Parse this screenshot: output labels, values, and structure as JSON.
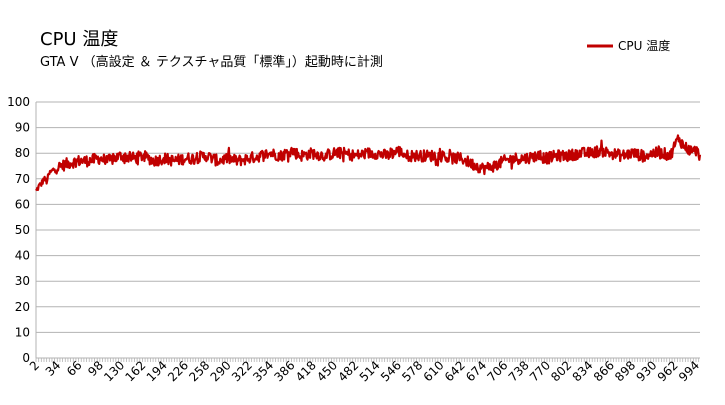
{
  "chart_data": {
    "type": "line",
    "title": "CPU 温度",
    "subtitle": "GTA V （高設定 ＆ テクスチャ品質「標準」）起動時に計測",
    "xlabel": "",
    "ylabel": "",
    "ylim": [
      0,
      100
    ],
    "yticks": [
      "0",
      "10",
      "20",
      "30",
      "40",
      "50",
      "60",
      "70",
      "80",
      "90",
      "100"
    ],
    "x_range": [
      2,
      1000
    ],
    "xticks": [
      "2",
      "34",
      "66",
      "98",
      "130",
      "162",
      "194",
      "226",
      "258",
      "290",
      "322",
      "354",
      "386",
      "418",
      "450",
      "482",
      "514",
      "546",
      "578",
      "610",
      "642",
      "674",
      "706",
      "738",
      "770",
      "802",
      "834",
      "866",
      "898",
      "930",
      "962",
      "994"
    ],
    "grid": "horizontal",
    "legend_position": "top-right",
    "series": [
      {
        "name": "CPU 温度",
        "color": "#c00000",
        "x": [
          2,
          6,
          10,
          14,
          18,
          22,
          26,
          30,
          40,
          50,
          66,
          80,
          98,
          110,
          130,
          150,
          162,
          180,
          194,
          210,
          226,
          240,
          258,
          275,
          290,
          305,
          322,
          340,
          354,
          370,
          386,
          400,
          418,
          435,
          450,
          465,
          482,
          500,
          514,
          530,
          546,
          560,
          578,
          595,
          610,
          625,
          642,
          655,
          665,
          675,
          690,
          706,
          720,
          738,
          755,
          770,
          785,
          802,
          818,
          834,
          850,
          866,
          882,
          898,
          914,
          930,
          945,
          955,
          962,
          968,
          975,
          985,
          994,
          1000
        ],
        "values": [
          65,
          67,
          68,
          70,
          69,
          72,
          73,
          74,
          75,
          76,
          77,
          77,
          78,
          77,
          79,
          78,
          79,
          77,
          78,
          77,
          78,
          78,
          79,
          77,
          78,
          77,
          78,
          79,
          80,
          79,
          81,
          79,
          80,
          79,
          80,
          80,
          79,
          80,
          80,
          79,
          81,
          79,
          79,
          79,
          79,
          78,
          78,
          76,
          75,
          74,
          75,
          77,
          78,
          78,
          79,
          78,
          79,
          79,
          80,
          80,
          81,
          80,
          79,
          80,
          79,
          80,
          80,
          79,
          83,
          86,
          83,
          81,
          81,
          79
        ]
      }
    ]
  }
}
